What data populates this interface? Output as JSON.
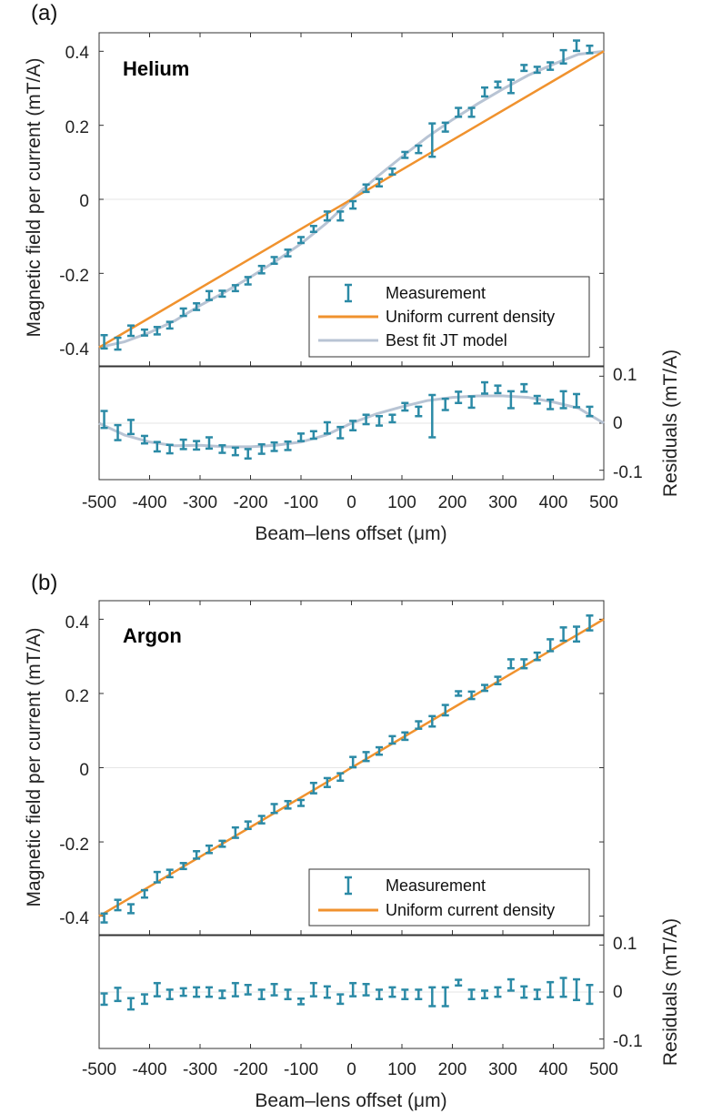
{
  "colors": {
    "measurement": "#2b8aa6",
    "uniform": "#f0922e",
    "jt": "#b8c4d4",
    "axis": "#333333",
    "zero": "#e6e6e6"
  },
  "chart_data": [
    {
      "type": "scatter",
      "panel_label": "(a)",
      "gas_label": "Helium",
      "title": "",
      "xlabel": "Beam–lens offset (μm)",
      "ylabel_main": "Magnetic field per current (mT/A)",
      "ylabel_resid": "Residuals (mT/A)",
      "xlim": [
        -500,
        500
      ],
      "ylim_main": [
        -0.45,
        0.45
      ],
      "ylim_resid": [
        -0.12,
        0.12
      ],
      "xticks": [
        "-500",
        "-400",
        "-300",
        "-200",
        "-100",
        "0",
        "100",
        "200",
        "300",
        "400",
        "500"
      ],
      "yticks_main": [
        "0.4",
        "0.2",
        "0",
        "-0.2",
        "-0.4"
      ],
      "yticks_resid": [
        "0.1",
        "0",
        "-0.1"
      ],
      "legend": [
        "Measurement",
        "Uniform current density",
        "Best fit JT model"
      ],
      "x": [
        -490,
        -463,
        -437,
        -410,
        -385,
        -360,
        -333,
        -307,
        -282,
        -256,
        -230,
        -205,
        -178,
        -153,
        -126,
        -100,
        -75,
        -48,
        -22,
        3,
        29,
        55,
        81,
        106,
        133,
        160,
        186,
        212,
        238,
        264,
        290,
        316,
        342,
        368,
        394,
        420,
        446,
        472
      ],
      "y": [
        -0.385,
        -0.39,
        -0.355,
        -0.36,
        -0.355,
        -0.34,
        -0.305,
        -0.29,
        -0.26,
        -0.255,
        -0.24,
        -0.22,
        -0.19,
        -0.165,
        -0.145,
        -0.11,
        -0.08,
        -0.045,
        -0.045,
        -0.015,
        0.03,
        0.045,
        0.075,
        0.12,
        0.135,
        0.16,
        0.195,
        0.235,
        0.235,
        0.29,
        0.31,
        0.305,
        0.355,
        0.35,
        0.36,
        0.385,
        0.415,
        0.405
      ],
      "err": [
        0.018,
        0.016,
        0.014,
        0.008,
        0.01,
        0.009,
        0.01,
        0.009,
        0.012,
        0.008,
        0.008,
        0.01,
        0.01,
        0.009,
        0.009,
        0.008,
        0.008,
        0.012,
        0.012,
        0.01,
        0.01,
        0.01,
        0.008,
        0.008,
        0.01,
        0.045,
        0.012,
        0.012,
        0.012,
        0.012,
        0.008,
        0.018,
        0.008,
        0.008,
        0.01,
        0.018,
        0.014,
        0.01
      ],
      "resid": [
        0.008,
        -0.02,
        -0.008,
        -0.035,
        -0.05,
        -0.055,
        -0.045,
        -0.047,
        -0.042,
        -0.055,
        -0.06,
        -0.065,
        -0.055,
        -0.05,
        -0.048,
        -0.03,
        -0.025,
        -0.01,
        -0.02,
        -0.005,
        0.008,
        0.005,
        0.01,
        0.035,
        0.025,
        0.015,
        0.04,
        0.055,
        0.045,
        0.075,
        0.072,
        0.05,
        0.075,
        0.05,
        0.04,
        0.05,
        0.048,
        0.025
      ],
      "resid_err": [
        0.018,
        0.016,
        0.015,
        0.008,
        0.01,
        0.009,
        0.01,
        0.009,
        0.012,
        0.008,
        0.008,
        0.01,
        0.01,
        0.009,
        0.009,
        0.008,
        0.008,
        0.012,
        0.012,
        0.01,
        0.01,
        0.01,
        0.008,
        0.008,
        0.01,
        0.045,
        0.012,
        0.012,
        0.012,
        0.012,
        0.008,
        0.018,
        0.008,
        0.008,
        0.01,
        0.018,
        0.014,
        0.01
      ],
      "uniform_line": {
        "x": [
          -500,
          500
        ],
        "y": [
          -0.4,
          0.4
        ]
      },
      "jt_curve": {
        "x": [
          -500,
          -450,
          -400,
          -350,
          -300,
          -250,
          -200,
          -150,
          -100,
          -50,
          0,
          50,
          100,
          150,
          200,
          250,
          300,
          350,
          400,
          450,
          500
        ],
        "y": [
          -0.4,
          -0.385,
          -0.36,
          -0.328,
          -0.287,
          -0.25,
          -0.21,
          -0.167,
          -0.12,
          -0.065,
          0.0,
          0.06,
          0.115,
          0.168,
          0.215,
          0.258,
          0.298,
          0.335,
          0.365,
          0.392,
          0.4
        ]
      }
    },
    {
      "type": "scatter",
      "panel_label": "(b)",
      "gas_label": "Argon",
      "title": "",
      "xlabel": "Beam–lens offset (μm)",
      "ylabel_main": "Magnetic field per current (mT/A)",
      "ylabel_resid": "Residuals (mT/A)",
      "xlim": [
        -500,
        500
      ],
      "ylim_main": [
        -0.45,
        0.45
      ],
      "ylim_resid": [
        -0.12,
        0.12
      ],
      "xticks": [
        "-500",
        "-400",
        "-300",
        "-200",
        "-100",
        "0",
        "100",
        "200",
        "300",
        "400",
        "500"
      ],
      "yticks_main": [
        "0.4",
        "0.2",
        "0",
        "-0.2",
        "-0.4"
      ],
      "yticks_resid": [
        "0.1",
        "0",
        "-0.1"
      ],
      "legend": [
        "Measurement",
        "Uniform current density"
      ],
      "x": [
        -490,
        -463,
        -437,
        -410,
        -385,
        -360,
        -333,
        -307,
        -282,
        -256,
        -230,
        -205,
        -178,
        -153,
        -126,
        -100,
        -75,
        -48,
        -22,
        3,
        29,
        55,
        81,
        106,
        133,
        160,
        186,
        212,
        238,
        264,
        290,
        316,
        342,
        368,
        394,
        420,
        446,
        472
      ],
      "y": [
        -0.405,
        -0.37,
        -0.38,
        -0.34,
        -0.295,
        -0.285,
        -0.265,
        -0.235,
        -0.22,
        -0.205,
        -0.175,
        -0.155,
        -0.14,
        -0.11,
        -0.1,
        -0.095,
        -0.055,
        -0.04,
        -0.025,
        0.015,
        0.03,
        0.045,
        0.075,
        0.085,
        0.115,
        0.125,
        0.155,
        0.2,
        0.195,
        0.215,
        0.235,
        0.28,
        0.28,
        0.3,
        0.33,
        0.36,
        0.36,
        0.39
      ],
      "err": [
        0.012,
        0.014,
        0.012,
        0.01,
        0.014,
        0.01,
        0.008,
        0.01,
        0.01,
        0.008,
        0.014,
        0.01,
        0.01,
        0.012,
        0.01,
        0.008,
        0.014,
        0.012,
        0.01,
        0.014,
        0.012,
        0.01,
        0.01,
        0.01,
        0.01,
        0.014,
        0.014,
        0.006,
        0.01,
        0.008,
        0.01,
        0.012,
        0.012,
        0.01,
        0.016,
        0.018,
        0.02,
        0.02
      ],
      "resid": [
        -0.015,
        -0.005,
        -0.025,
        -0.015,
        0.005,
        -0.005,
        0.0,
        0.0,
        0.0,
        -0.005,
        0.005,
        0.005,
        -0.005,
        0.005,
        -0.005,
        -0.02,
        0.005,
        0.0,
        -0.015,
        0.005,
        0.005,
        -0.005,
        0.0,
        -0.005,
        -0.005,
        -0.01,
        -0.01,
        0.02,
        -0.005,
        -0.005,
        0.0,
        0.015,
        0.0,
        -0.005,
        0.005,
        0.01,
        0.005,
        -0.005
      ],
      "resid_err": [
        0.012,
        0.014,
        0.012,
        0.01,
        0.014,
        0.01,
        0.008,
        0.01,
        0.01,
        0.008,
        0.014,
        0.01,
        0.01,
        0.012,
        0.01,
        0.006,
        0.014,
        0.012,
        0.01,
        0.014,
        0.012,
        0.01,
        0.01,
        0.01,
        0.01,
        0.02,
        0.02,
        0.006,
        0.01,
        0.008,
        0.01,
        0.012,
        0.012,
        0.01,
        0.016,
        0.02,
        0.022,
        0.02
      ],
      "uniform_line": {
        "x": [
          -500,
          500
        ],
        "y": [
          -0.4,
          0.4
        ]
      }
    }
  ]
}
